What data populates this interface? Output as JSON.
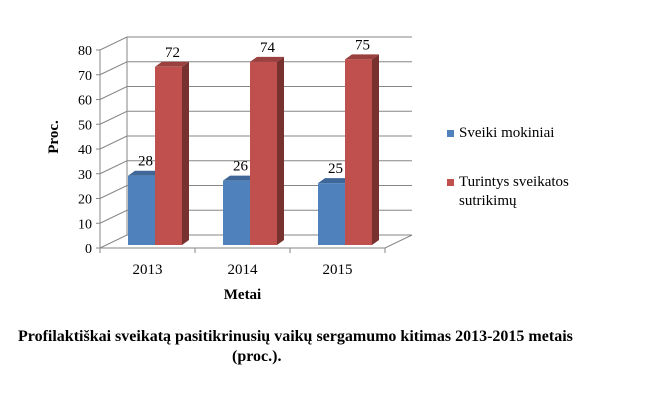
{
  "chart_data": {
    "type": "bar",
    "categories": [
      "2013",
      "2014",
      "2015"
    ],
    "series": [
      {
        "name": "Sveiki mokiniai",
        "values": [
          28,
          26,
          25
        ],
        "color": "#4f81bd"
      },
      {
        "name": "Turintys sveikatos sutrikimų",
        "values": [
          72,
          74,
          75
        ],
        "color": "#c0504d"
      }
    ],
    "xlabel": "Metai",
    "ylabel": "Proc.",
    "ylim": [
      0,
      80
    ],
    "yticks": [
      "0",
      "10",
      "20",
      "30",
      "40",
      "50",
      "60",
      "70",
      "80"
    ],
    "grid": true,
    "legend_position": "right",
    "legend_lines": [
      [
        "Sveiki mokiniai"
      ],
      [
        "Turintys sveikatos",
        "sutrikimų"
      ]
    ]
  },
  "caption": {
    "line1": "Profilaktiškai sveikatą pasitikrinusių vaikų sergamumo kitimas 2013-2015 metais",
    "line2": "(proc.)."
  }
}
